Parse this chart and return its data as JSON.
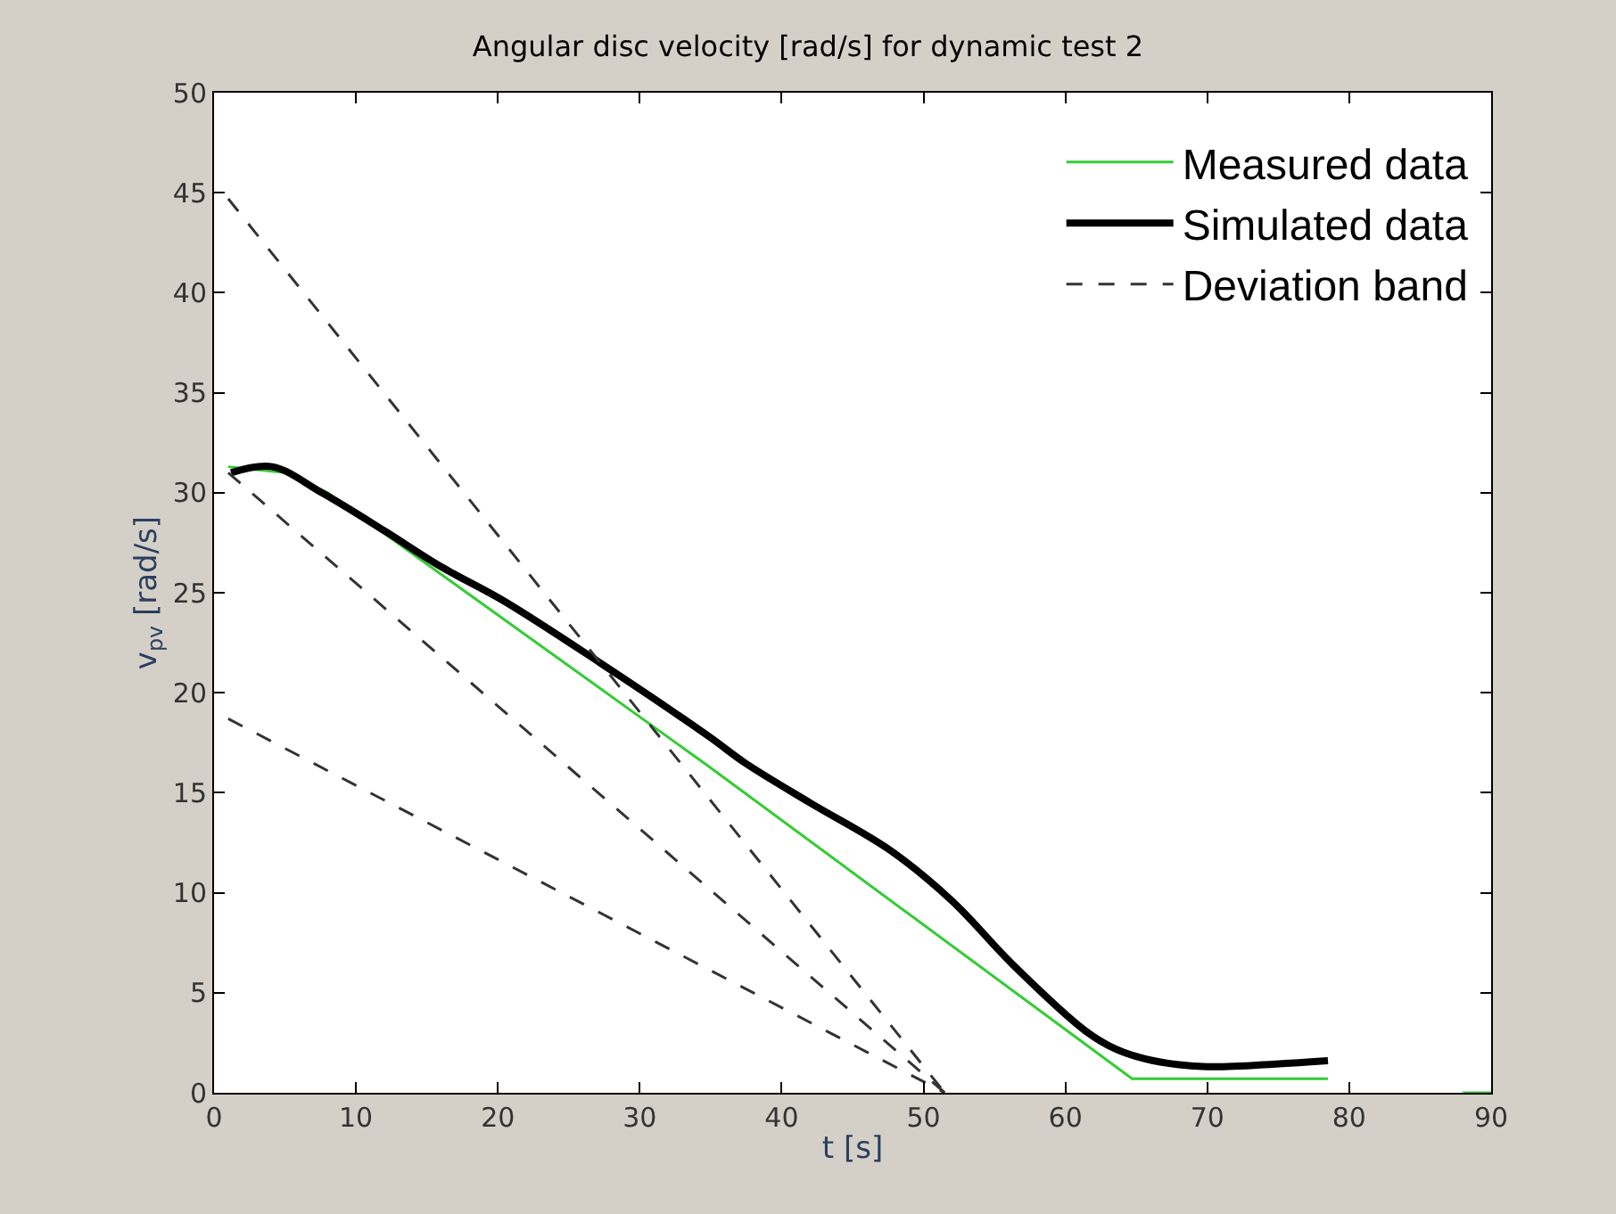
{
  "chart_data": {
    "type": "line",
    "title": "Angular disc velocity [rad/s] for dynamic test 2",
    "xlabel": "t [s]",
    "ylabel": "v$_{pv}$ [rad/s]",
    "xlim": [
      0,
      90
    ],
    "ylim": [
      0,
      50
    ],
    "xticks": [
      0,
      10,
      20,
      30,
      40,
      50,
      60,
      70,
      80,
      90
    ],
    "yticks": [
      0,
      5,
      10,
      15,
      20,
      25,
      30,
      35,
      40,
      45,
      50
    ],
    "legend": "top right",
    "series": [
      {
        "name": "Measured data",
        "color": "#33cc33",
        "x": [
          1,
          5,
          8,
          34.9,
          64.7,
          78.5,
          null,
          88,
          90
        ],
        "values": [
          31.3,
          31,
          30,
          16.3,
          0.7,
          0.7,
          null,
          0,
          0
        ]
      },
      {
        "name": "Simulated data",
        "color": "#000000",
        "x": [
          1.2,
          4.1,
          7.6,
          12,
          16,
          20.4,
          27.2,
          34.9,
          37.4,
          42,
          47.7,
          52,
          56.3,
          61.4,
          63.5,
          65.6,
          68,
          70,
          74,
          78.5
        ],
        "values": [
          31,
          31.3,
          30,
          28.1,
          26.3,
          24.6,
          21.5,
          17.8,
          16.5,
          14.5,
          12.1,
          9.6,
          6.4,
          3.1,
          2.2,
          1.7,
          1.4,
          1.3,
          1.4,
          1.6
        ]
      },
      {
        "name": "Deviation band",
        "color": "#333333",
        "line_style": "dashed",
        "x": [
          1,
          51.5
        ],
        "values": [
          44.7,
          0
        ]
      },
      {
        "color": "#333333",
        "line_style": "dashed",
        "x": [
          1,
          51.5
        ],
        "values": [
          31,
          0
        ]
      },
      {
        "color": "#333333",
        "line_style": "dashed",
        "x": [
          1,
          51.5
        ],
        "values": [
          18.7,
          0
        ]
      }
    ]
  }
}
